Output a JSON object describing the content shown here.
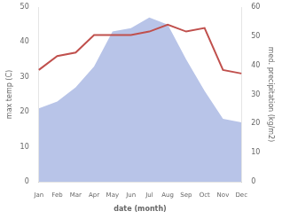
{
  "chart_data": {
    "type": "line",
    "xlabel": "date (month)",
    "ylabel": "max temp (C)",
    "y2label": "med. precipitation (kg/m2)",
    "categories": [
      "Jan",
      "Feb",
      "Mar",
      "Apr",
      "May",
      "Jun",
      "Jul",
      "Aug",
      "Sep",
      "Oct",
      "Nov",
      "Dec"
    ],
    "series": [
      {
        "type": "area",
        "color": "#b8c4e8",
        "values": [
          21,
          23,
          27,
          33,
          43,
          44,
          47,
          45,
          35,
          26,
          18,
          17
        ]
      },
      {
        "type": "line",
        "color": "#c0504d",
        "values": [
          32,
          36,
          37,
          42,
          42,
          42,
          43,
          45,
          43,
          44,
          32,
          31
        ]
      }
    ],
    "ylim": [
      0,
      50
    ],
    "yticks": [
      0,
      10,
      20,
      30,
      40,
      50
    ],
    "y2lim": [
      0,
      60
    ],
    "y2ticks": [
      0,
      10,
      20,
      30,
      40,
      50,
      60
    ],
    "grid": false
  }
}
